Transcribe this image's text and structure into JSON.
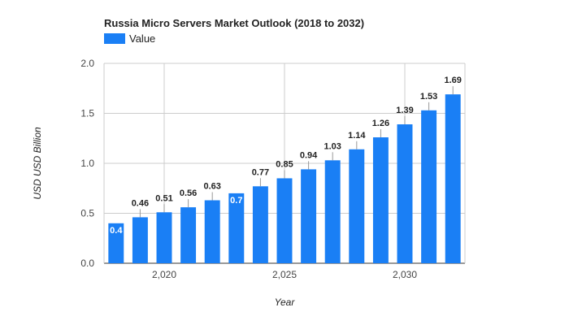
{
  "chart_data": {
    "type": "bar",
    "title": "Russia Micro Servers Market Outlook (2018 to 2032)",
    "xlabel": "Year",
    "ylabel": "USD USD Billion",
    "legend": {
      "position": "top-left",
      "entries": [
        "Value"
      ]
    },
    "color": "#1a7ff5",
    "grid": true,
    "ylim": [
      0,
      2.0
    ],
    "yticks": [
      "0.0",
      "0.5",
      "1.0",
      "1.5",
      "2.0"
    ],
    "yticks_values": [
      0,
      0.5,
      1.0,
      1.5,
      2.0
    ],
    "xticks": [
      {
        "value": 2020,
        "label": "2,020"
      },
      {
        "value": 2025,
        "label": "2,025"
      },
      {
        "value": 2030,
        "label": "2,030"
      }
    ],
    "x": [
      2018,
      2019,
      2020,
      2021,
      2022,
      2023,
      2024,
      2025,
      2026,
      2027,
      2028,
      2029,
      2030,
      2031,
      2032
    ],
    "series": [
      {
        "name": "Value",
        "values": [
          0.4,
          0.46,
          0.51,
          0.56,
          0.63,
          0.7,
          0.77,
          0.85,
          0.94,
          1.03,
          1.14,
          1.26,
          1.39,
          1.53,
          1.69
        ],
        "labels": [
          "0.4",
          "0.46",
          "0.51",
          "0.56",
          "0.63",
          "0.7",
          "0.77",
          "0.85",
          "0.94",
          "1.03",
          "1.14",
          "1.26",
          "1.39",
          "1.53",
          "1.69"
        ],
        "label_inside": [
          true,
          false,
          false,
          false,
          false,
          true,
          false,
          false,
          false,
          false,
          false,
          false,
          false,
          false,
          false
        ]
      }
    ]
  }
}
